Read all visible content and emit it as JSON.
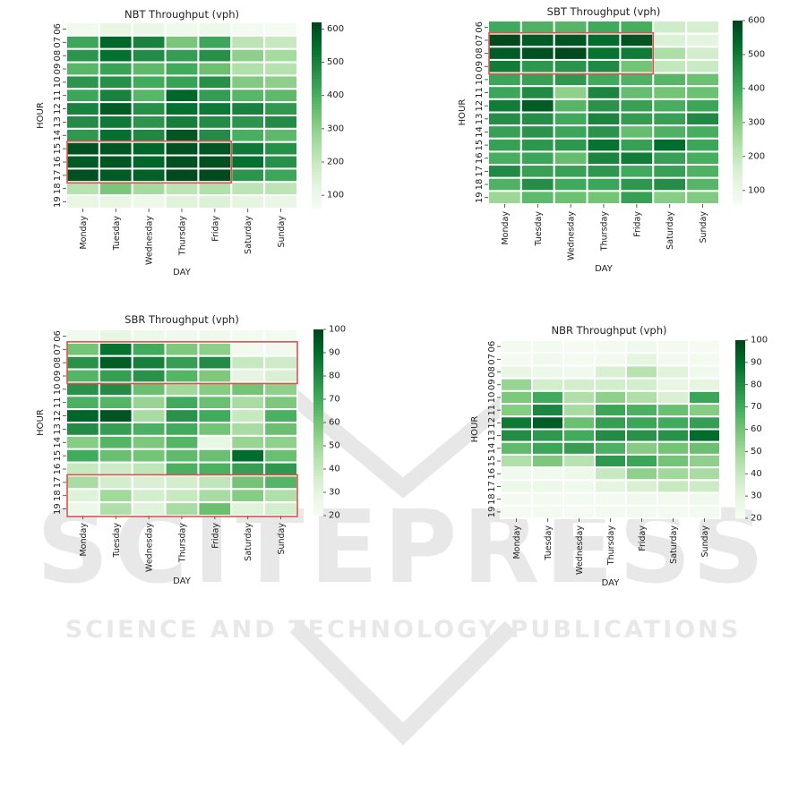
{
  "watermark": {
    "logo_text": "SCITEPRESS",
    "tagline": "SCIENCE AND TECHNOLOGY PUBLICATIONS",
    "color": "#e6e6e6"
  },
  "colormap": [
    "#f7fcf5",
    "#e5f5e0",
    "#c7e9c0",
    "#a1d99b",
    "#74c476",
    "#41ab5d",
    "#238b45",
    "#006d2c",
    "#00441b"
  ],
  "highlight_color": "#d9534f",
  "chart_data": [
    {
      "type": "heatmap",
      "title": "NBT Throughput (vph)",
      "xlabel": "DAY",
      "ylabel": "HOUR",
      "x": [
        "Monday",
        "Tuesday",
        "Wednesday",
        "Thursday",
        "Friday",
        "Saturday",
        "Sunday"
      ],
      "y": [
        "06",
        "07",
        "08",
        "09",
        "10",
        "11",
        "12",
        "13",
        "14",
        "15",
        "16",
        "17",
        "18",
        "19"
      ],
      "vmin": 60,
      "vmax": 620,
      "colorbar_ticks": [
        100,
        200,
        300,
        400,
        500,
        600
      ],
      "values": [
        [
          80,
          120,
          110,
          90,
          100,
          75,
          70
        ],
        [
          420,
          560,
          500,
          330,
          420,
          220,
          200
        ],
        [
          460,
          540,
          480,
          440,
          470,
          300,
          260
        ],
        [
          380,
          430,
          370,
          410,
          350,
          240,
          230
        ],
        [
          460,
          470,
          410,
          430,
          470,
          320,
          300
        ],
        [
          420,
          500,
          380,
          560,
          440,
          380,
          370
        ],
        [
          500,
          580,
          470,
          540,
          520,
          500,
          450
        ],
        [
          480,
          520,
          460,
          510,
          480,
          460,
          480
        ],
        [
          450,
          540,
          490,
          590,
          480,
          400,
          370
        ],
        [
          600,
          590,
          560,
          600,
          590,
          520,
          470
        ],
        [
          580,
          590,
          560,
          600,
          600,
          540,
          470
        ],
        [
          600,
          580,
          570,
          610,
          610,
          460,
          420
        ],
        [
          230,
          330,
          260,
          220,
          240,
          220,
          220
        ],
        [
          120,
          120,
          100,
          140,
          150,
          130,
          110
        ]
      ],
      "highlight": {
        "rows": [
          "15",
          "17"
        ],
        "cols": [
          "Monday",
          "Friday"
        ]
      }
    },
    {
      "type": "heatmap",
      "title": "SBT Throughput (vph)",
      "xlabel": "DAY",
      "ylabel": "HOUR",
      "x": [
        "Monday",
        "Tuesday",
        "Wednesday",
        "Thursday",
        "Friday",
        "Saturday",
        "Sunday"
      ],
      "y": [
        "06",
        "07",
        "08",
        "09",
        "10",
        "11",
        "12",
        "13",
        "14",
        "15",
        "16",
        "17",
        "18",
        "19"
      ],
      "vmin": 60,
      "vmax": 600,
      "colorbar_ticks": [
        100,
        200,
        300,
        400,
        500,
        600
      ],
      "values": [
        [
          400,
          380,
          370,
          400,
          390,
          180,
          160
        ],
        [
          590,
          560,
          570,
          530,
          570,
          150,
          130
        ],
        [
          560,
          580,
          590,
          520,
          500,
          240,
          170
        ],
        [
          500,
          440,
          450,
          470,
          330,
          200,
          190
        ],
        [
          410,
          420,
          440,
          400,
          380,
          370,
          340
        ],
        [
          410,
          470,
          290,
          480,
          350,
          330,
          340
        ],
        [
          500,
          560,
          370,
          450,
          420,
          390,
          410
        ],
        [
          460,
          460,
          400,
          480,
          430,
          420,
          470
        ],
        [
          420,
          450,
          410,
          450,
          350,
          380,
          390
        ],
        [
          420,
          440,
          440,
          520,
          420,
          530,
          410
        ],
        [
          390,
          410,
          350,
          480,
          500,
          420,
          390
        ],
        [
          470,
          420,
          420,
          440,
          400,
          420,
          380
        ],
        [
          380,
          460,
          400,
          410,
          440,
          460,
          370
        ],
        [
          270,
          360,
          340,
          330,
          420,
          300,
          310
        ]
      ],
      "highlight": {
        "rows": [
          "07",
          "09"
        ],
        "cols": [
          "Monday",
          "Friday"
        ]
      }
    },
    {
      "type": "heatmap",
      "title": "SBR Throughput (vph)",
      "xlabel": "DAY",
      "ylabel": "HOUR",
      "x": [
        "Monday",
        "Tuesday",
        "Wednesday",
        "Thursday",
        "Friday",
        "Saturday",
        "Sunday"
      ],
      "y": [
        "06",
        "07",
        "08",
        "09",
        "10",
        "11",
        "12",
        "13",
        "14",
        "15",
        "16",
        "17",
        "18",
        "19"
      ],
      "vmin": 20,
      "vmax": 100,
      "colorbar_ticks": [
        20,
        30,
        40,
        50,
        60,
        70,
        80,
        90,
        100
      ],
      "values": [
        [
          24,
          28,
          26,
          24,
          25,
          22,
          22
        ],
        [
          60,
          88,
          70,
          58,
          55,
          23,
          23
        ],
        [
          78,
          94,
          84,
          74,
          80,
          40,
          38
        ],
        [
          66,
          74,
          78,
          66,
          58,
          30,
          34
        ],
        [
          78,
          80,
          62,
          50,
          56,
          60,
          54
        ],
        [
          68,
          66,
          52,
          70,
          62,
          48,
          58
        ],
        [
          92,
          96,
          48,
          78,
          70,
          40,
          68
        ],
        [
          80,
          74,
          68,
          70,
          60,
          48,
          62
        ],
        [
          56,
          66,
          58,
          66,
          28,
          52,
          54
        ],
        [
          70,
          62,
          60,
          64,
          62,
          90,
          62
        ],
        [
          40,
          38,
          42,
          68,
          68,
          74,
          76
        ],
        [
          48,
          36,
          34,
          36,
          42,
          60,
          66
        ],
        [
          32,
          50,
          36,
          40,
          48,
          56,
          46
        ],
        [
          26,
          46,
          32,
          48,
          62,
          32,
          36
        ]
      ],
      "highlights": [
        {
          "rows": [
            "07",
            "09"
          ],
          "cols": [
            "Monday",
            "Sunday"
          ]
        },
        {
          "rows": [
            "17",
            "19"
          ],
          "cols": [
            "Monday",
            "Sunday"
          ]
        }
      ]
    },
    {
      "type": "heatmap",
      "title": "NBR Throughput (vph)",
      "xlabel": "DAY",
      "ylabel": "HOUR",
      "x": [
        "Monday",
        "Tuesday",
        "Wednesday",
        "Thursday",
        "Friday",
        "Saturday",
        "Sunday"
      ],
      "y": [
        "06",
        "07",
        "08",
        "09",
        "10",
        "11",
        "12",
        "13",
        "14",
        "15",
        "16",
        "17",
        "18",
        "19"
      ],
      "vmin": 20,
      "vmax": 100,
      "colorbar_ticks": [
        20,
        30,
        40,
        50,
        60,
        70,
        80,
        90,
        100
      ],
      "values": [
        [
          22,
          22,
          21,
          22,
          24,
          22,
          21
        ],
        [
          22,
          24,
          22,
          23,
          30,
          23,
          22
        ],
        [
          28,
          26,
          24,
          34,
          44,
          32,
          24
        ],
        [
          52,
          36,
          36,
          36,
          36,
          28,
          30
        ],
        [
          58,
          70,
          46,
          54,
          46,
          34,
          72
        ],
        [
          56,
          82,
          48,
          72,
          68,
          62,
          56
        ],
        [
          86,
          94,
          62,
          74,
          72,
          70,
          74
        ],
        [
          80,
          76,
          70,
          80,
          78,
          78,
          90
        ],
        [
          64,
          72,
          74,
          68,
          56,
          60,
          62
        ],
        [
          46,
          58,
          44,
          76,
          72,
          60,
          54
        ],
        [
          24,
          24,
          26,
          40,
          54,
          50,
          48
        ],
        [
          26,
          26,
          24,
          30,
          34,
          40,
          38
        ],
        [
          22,
          22,
          22,
          22,
          24,
          23,
          24
        ],
        [
          21,
          22,
          21,
          22,
          22,
          22,
          22
        ]
      ]
    }
  ]
}
